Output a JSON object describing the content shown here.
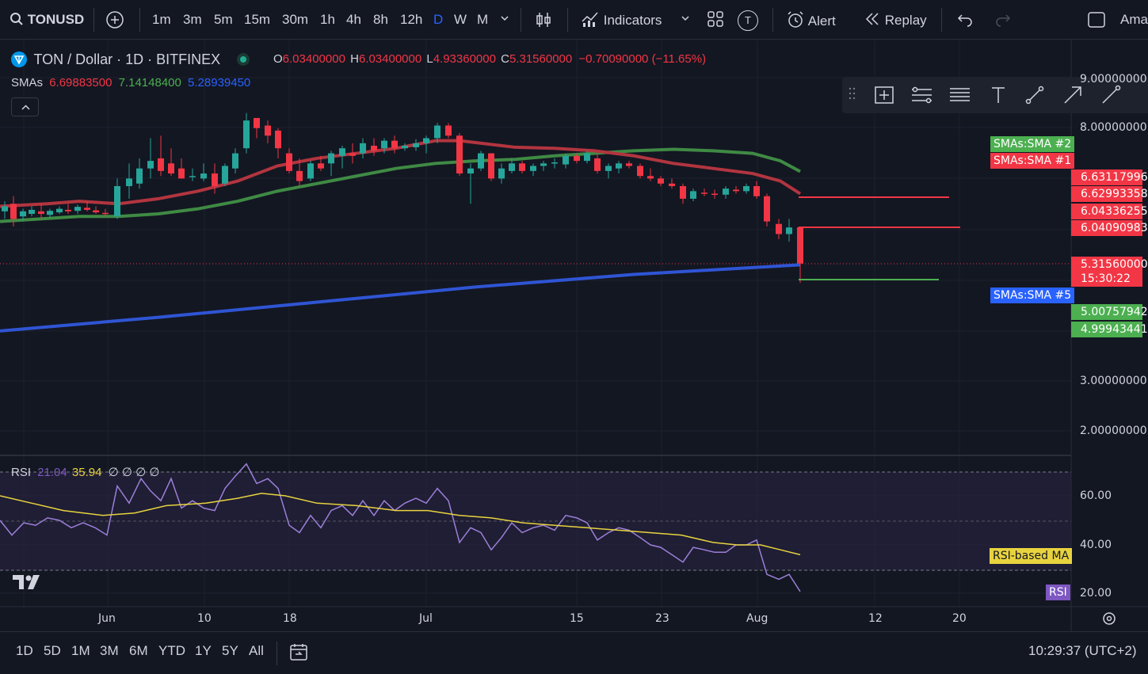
{
  "toolbar": {
    "symbol": "TONUSD",
    "intervals": [
      "1m",
      "3m",
      "5m",
      "15m",
      "30m",
      "1h",
      "4h",
      "8h",
      "12h",
      "D",
      "W",
      "M"
    ],
    "active_interval": "D",
    "indicators_label": "Indicators",
    "template_badge": "T",
    "alert_label": "Alert",
    "replay_label": "Replay",
    "account_label": "Ama"
  },
  "header": {
    "title": "TON / Dollar · 1D · BITFINEX",
    "o_label": "O",
    "o_value": "6.03400000",
    "h_label": "H",
    "h_value": "6.03400000",
    "l_label": "L",
    "l_value": "4.93360000",
    "c_label": "C",
    "c_value": "5.31560000",
    "change": "−0.70090000 (−11.65%)"
  },
  "sma_legend": {
    "label": "SMAs",
    "v1": "6.69883500",
    "v2": "7.14148400",
    "v3": "5.28939450",
    "c1": "#f23645",
    "c2": "#4caf50",
    "c3": "#2962ff"
  },
  "rsi_legend": {
    "label": "RSI",
    "rsi": "21.04",
    "ma": "35.94",
    "nans": "∅ ∅ ∅ ∅"
  },
  "price_axis": {
    "ticks": [
      "9.00000000",
      "8.00000000",
      "3.00000000",
      "2.00000000"
    ]
  },
  "price_tags": [
    {
      "text": "SMAs:SMA #2",
      "color": "#4caf50"
    },
    {
      "text": "SMAs:SMA #1",
      "color": "#f23645"
    },
    {
      "text": "6.63117996",
      "color": "#f23645"
    },
    {
      "text": "6.62993358",
      "color": "#f23645"
    },
    {
      "text": "6.04336255",
      "color": "#f23645"
    },
    {
      "text": "6.04090983",
      "color": "#f23645"
    },
    {
      "text": "5.31560000",
      "color": "#f23645"
    },
    {
      "text": "15:30:22",
      "color": "#f23645"
    },
    {
      "text": "SMAs:SMA #5",
      "color": "#2962ff"
    },
    {
      "text": "5.00757942",
      "color": "#4caf50"
    },
    {
      "text": "4.99943441",
      "color": "#4caf50"
    }
  ],
  "rsi_axis": {
    "ticks": [
      "60.00",
      "40.00",
      "20.00"
    ],
    "ma_tag": "RSI-based MA",
    "rsi_tag": "RSI"
  },
  "time_axis": {
    "labels": [
      "Jun",
      "10",
      "18",
      "Jul",
      "15",
      "23",
      "Aug",
      "12",
      "20"
    ]
  },
  "bottom": {
    "ranges": [
      "1D",
      "5D",
      "1M",
      "3M",
      "6M",
      "YTD",
      "1Y",
      "5Y",
      "All"
    ],
    "clock": "10:29:37 (UTC+2)"
  },
  "colors": {
    "up": "#26a69a",
    "down": "#f23645",
    "sma1": "#b2353f",
    "sma2": "#3f8a44",
    "sma3": "#2f55d4",
    "rsi": "#9c7fd9",
    "rsi_ma": "#e8d33f"
  },
  "icons": [
    "search-icon",
    "plus-circle-icon",
    "chevron-down-icon",
    "candles-icon",
    "indicators-icon",
    "layout-grid-icon",
    "alarm-icon",
    "replay-icon",
    "undo-icon",
    "redo-icon",
    "fullscreen-icon",
    "settings-icon",
    "calendar-goto-icon",
    "collapse-icon"
  ]
}
